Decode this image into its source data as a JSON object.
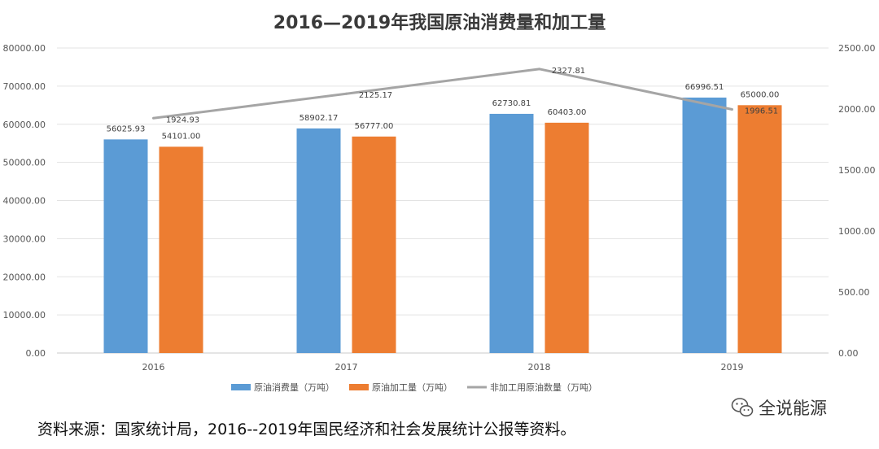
{
  "chart_data": {
    "type": "bar",
    "title": "2016—2019年我国原油消费量和加工量",
    "categories": [
      "2016",
      "2017",
      "2018",
      "2019"
    ],
    "series": [
      {
        "name": "原油消费量（万吨）",
        "type": "bar",
        "axis": "left",
        "color": "#5b9bd5",
        "values": [
          56025.93,
          58902.17,
          62730.81,
          66996.51
        ],
        "labels": [
          "56025.93",
          "58902.17",
          "62730.81",
          "66996.51"
        ]
      },
      {
        "name": "原油加工量（万吨）",
        "type": "bar",
        "axis": "left",
        "color": "#ed7d31",
        "values": [
          54101.0,
          56777.0,
          60403.0,
          65000.0
        ],
        "labels": [
          "54101.00",
          "56777.00",
          "60403.00",
          "65000.00"
        ]
      },
      {
        "name": "非加工用原油数量（万吨）",
        "type": "line",
        "axis": "right",
        "color": "#a5a5a5",
        "values": [
          1924.93,
          2125.17,
          2327.81,
          1996.51
        ],
        "labels": [
          "1924.93",
          "2125.17",
          "2327.81",
          "1996.51"
        ]
      }
    ],
    "y_left": {
      "min": 0,
      "max": 80000,
      "step": 10000,
      "ticks": [
        "0.00",
        "10000.00",
        "20000.00",
        "30000.00",
        "40000.00",
        "50000.00",
        "60000.00",
        "70000.00",
        "80000.00"
      ]
    },
    "y_right": {
      "min": 0,
      "max": 2500,
      "step": 500,
      "ticks": [
        "0.00",
        "500.00",
        "1000.00",
        "1500.00",
        "2000.00",
        "2500.00"
      ]
    },
    "grid": true,
    "legend": "bottom"
  },
  "footer": {
    "source_text": "资料来源：国家统计局，2016--2019年国民经济和社会发展统计公报等资料。"
  },
  "watermark": {
    "text": "全说能源",
    "icon": "wechat-icon"
  }
}
